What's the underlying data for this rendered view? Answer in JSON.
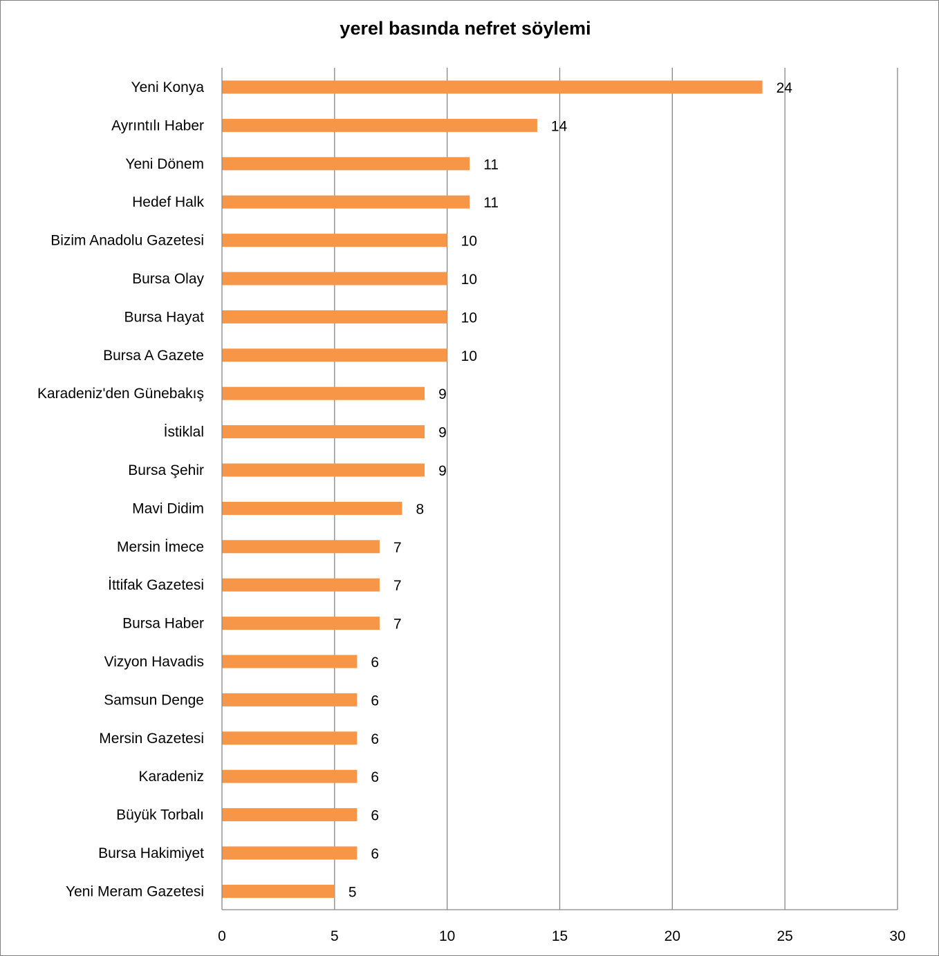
{
  "chart_data": {
    "type": "bar",
    "orientation": "horizontal",
    "title": "yerel basında nefret söylemi",
    "xlabel": "",
    "ylabel": "",
    "xlim": [
      0,
      30
    ],
    "x_ticks": [
      0,
      5,
      10,
      15,
      20,
      25,
      30
    ],
    "grid": "vertical",
    "legend": "none",
    "bar_color": "#F79646",
    "categories": [
      "Yeni Konya",
      "Ayrıntılı Haber",
      "Yeni Dönem",
      "Hedef Halk",
      "Bizim Anadolu Gazetesi",
      "Bursa Olay",
      "Bursa Hayat",
      "Bursa A Gazete",
      "Karadeniz'den Günebakış",
      "İstiklal",
      "Bursa Şehir",
      "Mavi Didim",
      "Mersin İmece",
      "İttifak Gazetesi",
      "Bursa Haber",
      "Vizyon Havadis",
      "Samsun Denge",
      "Mersin Gazetesi",
      "Karadeniz",
      "Büyük Torbalı",
      "Bursa Hakimiyet",
      "Yeni Meram Gazetesi"
    ],
    "values": [
      24,
      14,
      11,
      11,
      10,
      10,
      10,
      10,
      9,
      9,
      9,
      8,
      7,
      7,
      7,
      6,
      6,
      6,
      6,
      6,
      6,
      5
    ]
  }
}
